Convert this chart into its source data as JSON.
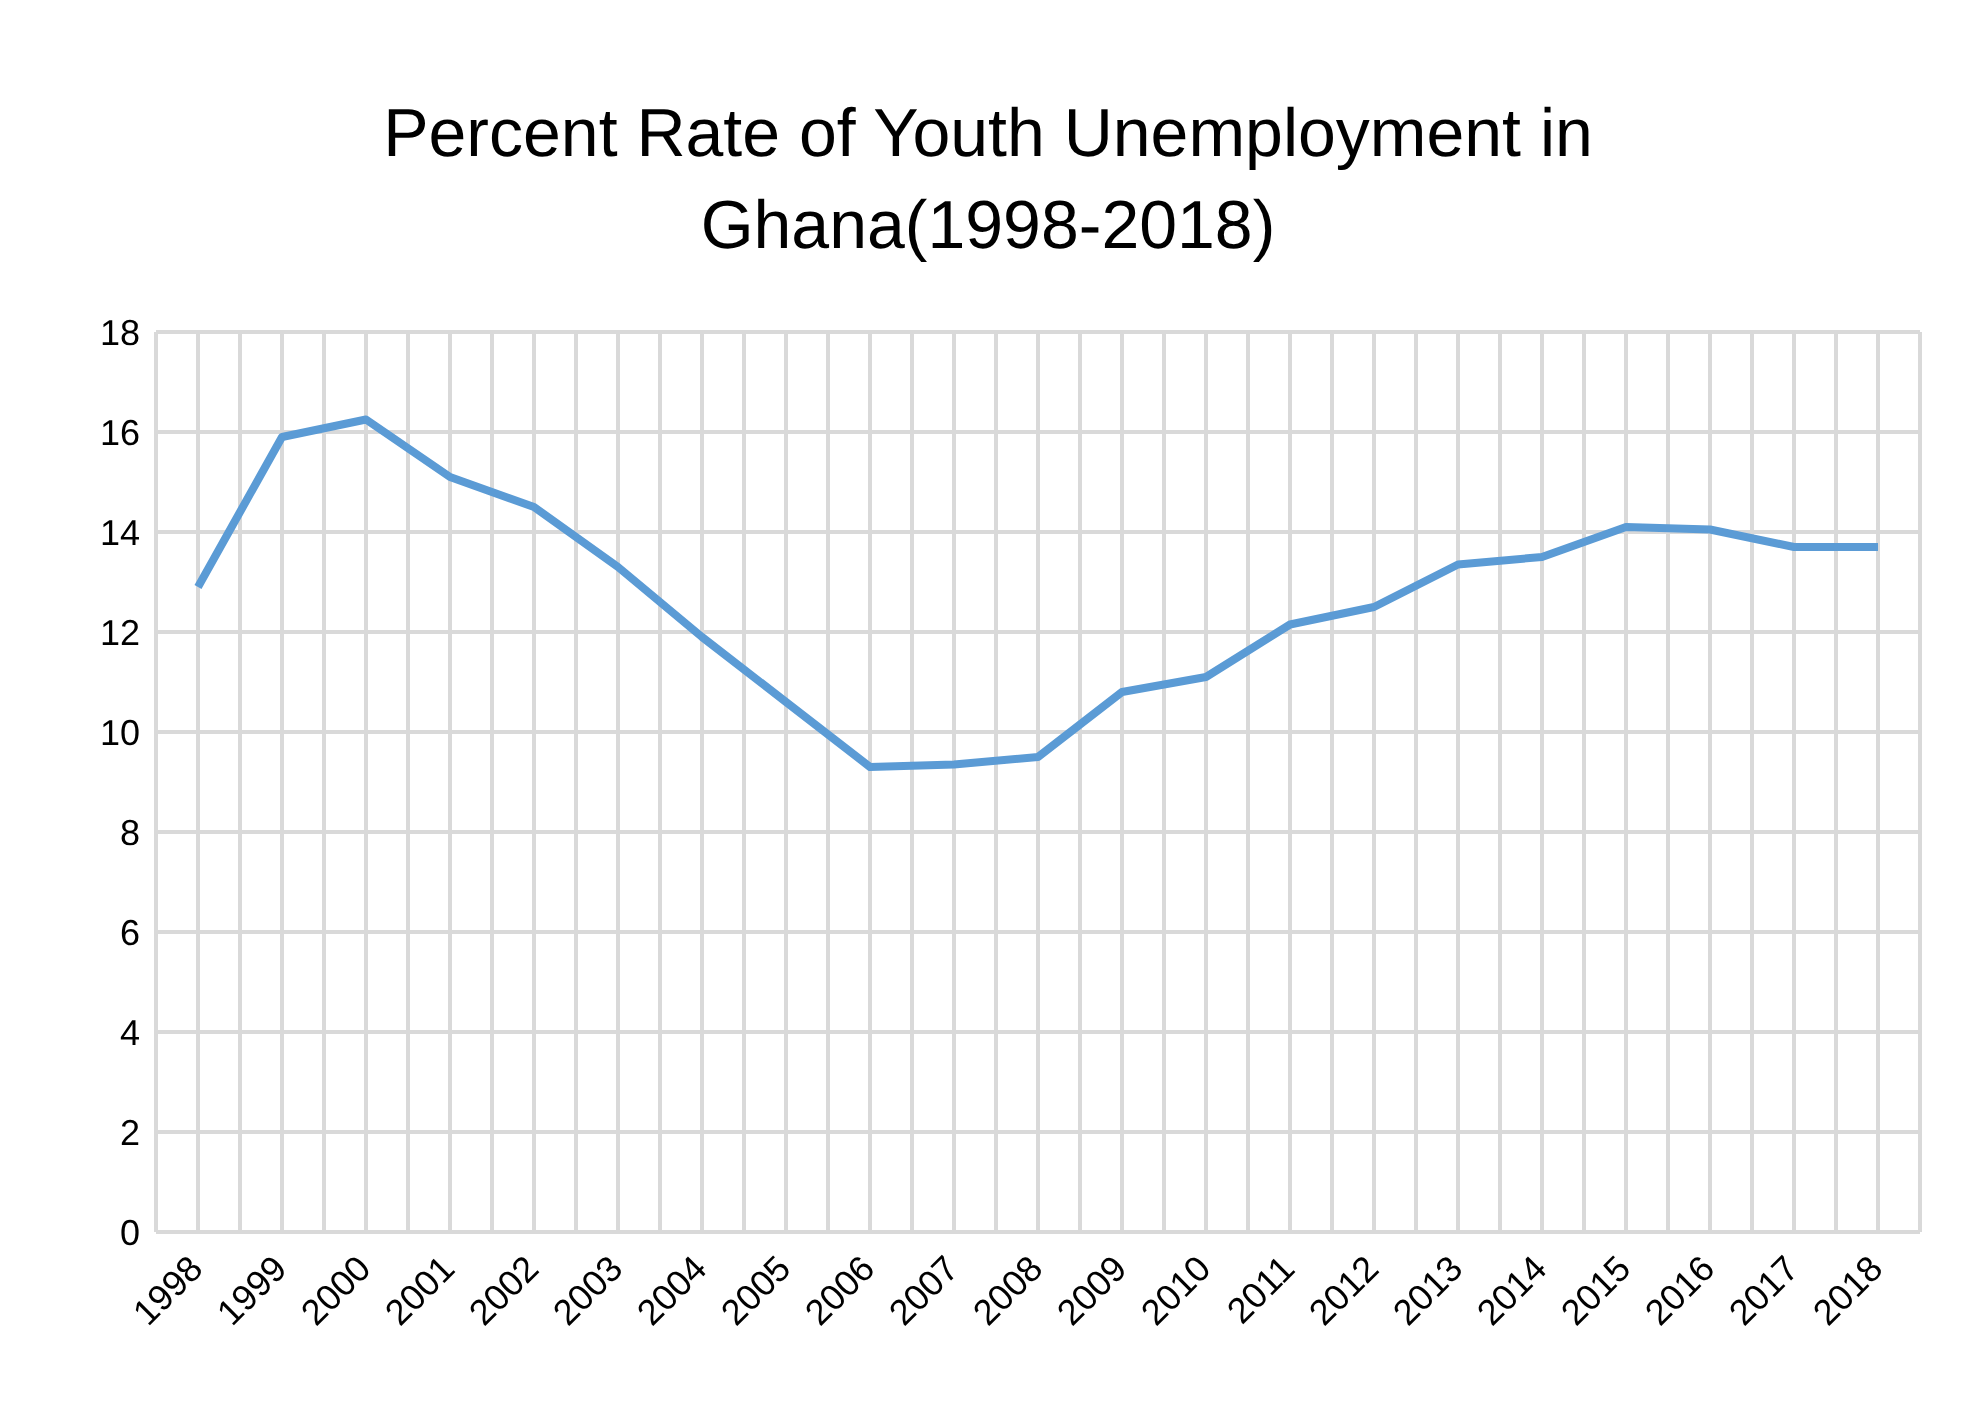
{
  "chart_data": {
    "type": "line",
    "title": "Percent Rate of Youth Unemployment in Ghana(1998-2018)",
    "categories": [
      "1998",
      "1999",
      "2000",
      "2001",
      "2002",
      "2003",
      "2004",
      "2005",
      "2006",
      "2007",
      "2008",
      "2009",
      "2010",
      "2011",
      "2012",
      "2013",
      "2014",
      "2015",
      "2016",
      "2017",
      "2018"
    ],
    "series": [
      {
        "color": "#5b9bd5",
        "values": [
          12.9,
          15.9,
          16.25,
          15.1,
          14.5,
          13.3,
          11.9,
          10.6,
          9.3,
          9.35,
          9.5,
          10.8,
          11.1,
          12.15,
          12.5,
          13.35,
          13.5,
          14.1,
          14.05,
          13.7,
          13.7
        ]
      }
    ],
    "ylim": [
      0,
      18
    ],
    "yticks": [
      0,
      2,
      4,
      6,
      8,
      10,
      12,
      14,
      16,
      18
    ],
    "grid": true,
    "marker": "none",
    "line_style": "solid"
  }
}
